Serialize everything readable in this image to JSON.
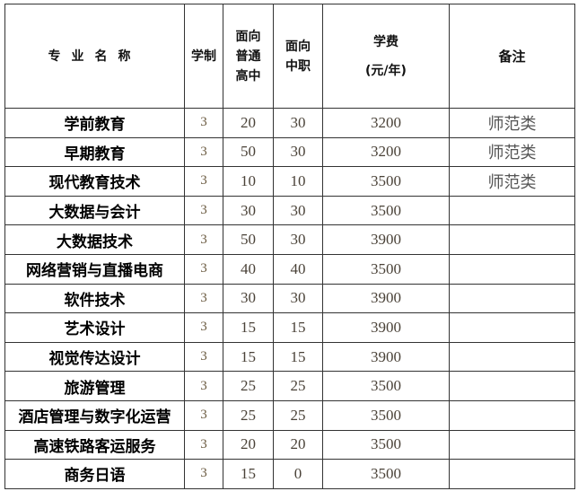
{
  "header": {
    "name": "专业名称",
    "duration": "学制",
    "high_school": "面向\n普通\n高中",
    "vocational": "面向\n中职",
    "tuition": "学费",
    "tuition_unit": "(元/年)",
    "note": "备注"
  },
  "rows": [
    {
      "name": "学前教育",
      "duration": "3",
      "high_school": "20",
      "vocational": "30",
      "tuition": "3200",
      "note": "师范类"
    },
    {
      "name": "早期教育",
      "duration": "3",
      "high_school": "50",
      "vocational": "30",
      "tuition": "3200",
      "note": "师范类"
    },
    {
      "name": "现代教育技术",
      "duration": "3",
      "high_school": "10",
      "vocational": "10",
      "tuition": "3500",
      "note": "师范类"
    },
    {
      "name": "大数据与会计",
      "duration": "3",
      "high_school": "30",
      "vocational": "30",
      "tuition": "3500",
      "note": ""
    },
    {
      "name": "大数据技术",
      "duration": "3",
      "high_school": "50",
      "vocational": "30",
      "tuition": "3900",
      "note": ""
    },
    {
      "name": "网络营销与直播电商",
      "duration": "3",
      "high_school": "40",
      "vocational": "40",
      "tuition": "3500",
      "note": ""
    },
    {
      "name": "软件技术",
      "duration": "3",
      "high_school": "30",
      "vocational": "30",
      "tuition": "3900",
      "note": ""
    },
    {
      "name": "艺术设计",
      "duration": "3",
      "high_school": "15",
      "vocational": "15",
      "tuition": "3900",
      "note": ""
    },
    {
      "name": "视觉传达设计",
      "duration": "3",
      "high_school": "15",
      "vocational": "15",
      "tuition": "3900",
      "note": ""
    },
    {
      "name": "旅游管理",
      "duration": "3",
      "high_school": "25",
      "vocational": "25",
      "tuition": "3500",
      "note": ""
    },
    {
      "name": "酒店管理与数字化运营",
      "duration": "3",
      "high_school": "25",
      "vocational": "25",
      "tuition": "3500",
      "note": ""
    },
    {
      "name": "高速铁路客运服务",
      "duration": "3",
      "high_school": "20",
      "vocational": "20",
      "tuition": "3500",
      "note": ""
    },
    {
      "name": "商务日语",
      "duration": "3",
      "high_school": "15",
      "vocational": "0",
      "tuition": "3500",
      "note": ""
    }
  ]
}
